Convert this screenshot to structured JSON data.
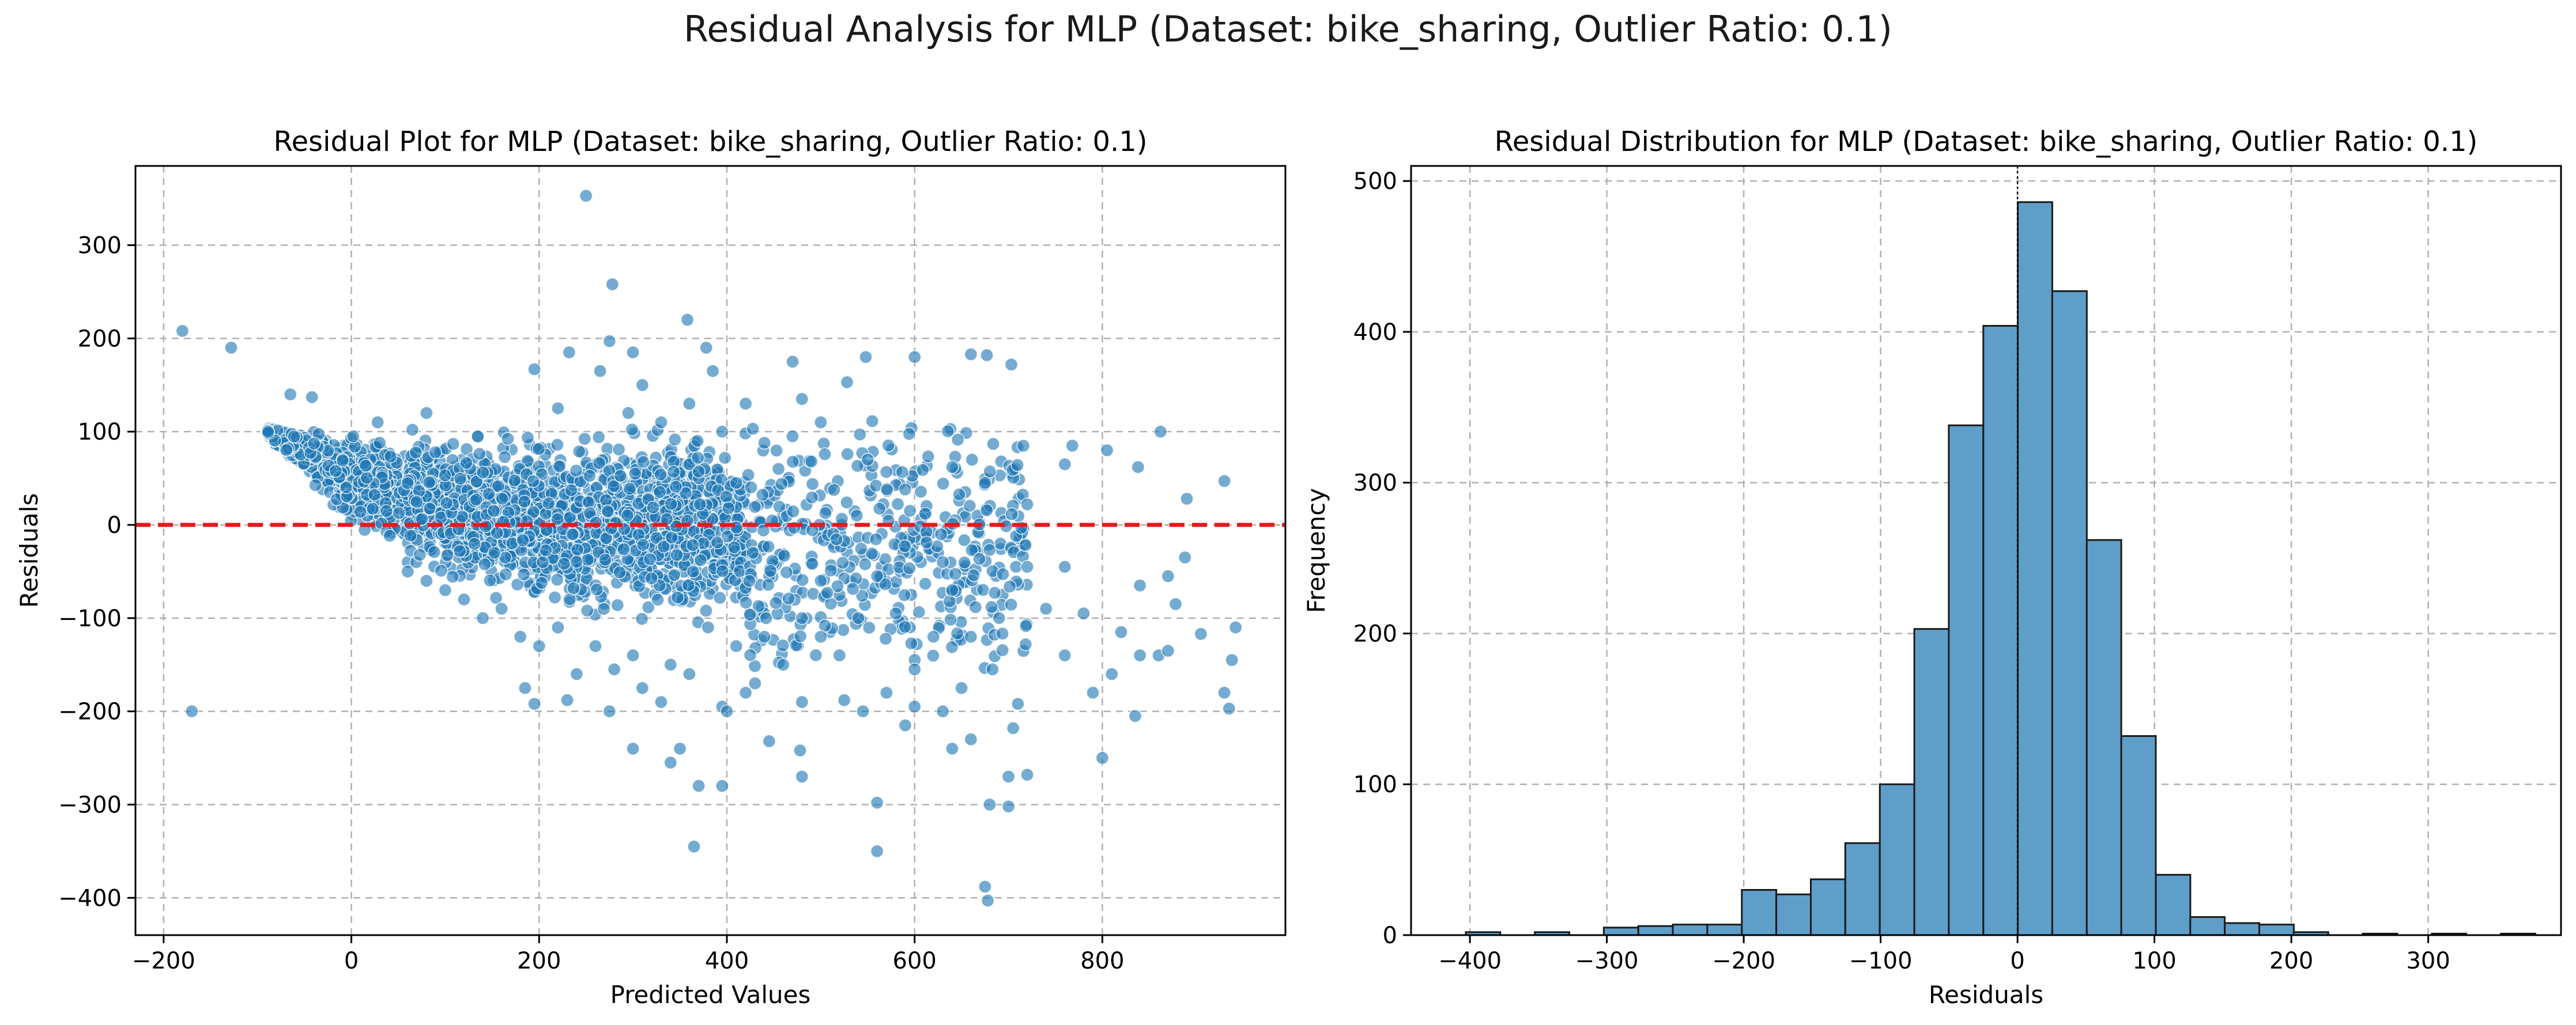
{
  "figure": {
    "suptitle": "Residual Analysis for MLP (Dataset: bike_sharing, Outlier Ratio: 0.1)"
  },
  "chart_data": [
    {
      "type": "scatter",
      "title": "Residual Plot for MLP (Dataset: bike_sharing, Outlier Ratio: 0.1)",
      "xlabel": "Predicted Values",
      "ylabel": "Residuals",
      "xlim": [
        -230,
        995
      ],
      "ylim": [
        -440,
        385
      ],
      "xticks": [
        -200,
        0,
        200,
        400,
        600,
        800
      ],
      "xtick_labels": [
        "−200",
        "0",
        "200",
        "400",
        "600",
        "800"
      ],
      "yticks": [
        -400,
        -300,
        -200,
        -100,
        0,
        100,
        200,
        300
      ],
      "ytick_labels": [
        "−400",
        "−300",
        "−200",
        "−100",
        "0",
        "100",
        "200",
        "300"
      ],
      "grid": true,
      "reference_line": {
        "y": 0,
        "color": "#e41a1c",
        "style": "dashed"
      },
      "marker_color": "#1f77b4",
      "points": [
        [
          -180,
          208
        ],
        [
          -128,
          190
        ],
        [
          -65,
          140
        ],
        [
          -42,
          137
        ],
        [
          2,
          95
        ],
        [
          28,
          110
        ],
        [
          65,
          102
        ],
        [
          80,
          120
        ],
        [
          195,
          167
        ],
        [
          232,
          185
        ],
        [
          250,
          353
        ],
        [
          278,
          258
        ],
        [
          275,
          197
        ],
        [
          300,
          185
        ],
        [
          358,
          220
        ],
        [
          378,
          190
        ],
        [
          385,
          165
        ],
        [
          470,
          175
        ],
        [
          548,
          180
        ],
        [
          600,
          180
        ],
        [
          660,
          183
        ],
        [
          677,
          182
        ],
        [
          703,
          172
        ],
        [
          528,
          153
        ],
        [
          768,
          85
        ],
        [
          805,
          80
        ],
        [
          862,
          100
        ],
        [
          930,
          47
        ],
        [
          890,
          28
        ],
        [
          838,
          62
        ],
        [
          760,
          65
        ],
        [
          640,
          62
        ],
        [
          675,
          45
        ],
        [
          720,
          22
        ],
        [
          590,
          38
        ],
        [
          550,
          70
        ],
        [
          595,
          15
        ],
        [
          490,
          68
        ],
        [
          455,
          60
        ],
        [
          500,
          110
        ],
        [
          440,
          88
        ],
        [
          410,
          45
        ],
        [
          395,
          100
        ],
        [
          420,
          130
        ],
        [
          480,
          135
        ],
        [
          470,
          95
        ],
        [
          360,
          130
        ],
        [
          330,
          110
        ],
        [
          310,
          150
        ],
        [
          295,
          120
        ],
        [
          265,
          165
        ],
        [
          220,
          125
        ],
        [
          -170,
          -200
        ],
        [
          185,
          -175
        ],
        [
          195,
          -192
        ],
        [
          230,
          -188
        ],
        [
          275,
          -200
        ],
        [
          300,
          -240
        ],
        [
          340,
          -255
        ],
        [
          350,
          -240
        ],
        [
          365,
          -345
        ],
        [
          370,
          -280
        ],
        [
          395,
          -280
        ],
        [
          395,
          -195
        ],
        [
          420,
          -180
        ],
        [
          445,
          -232
        ],
        [
          480,
          -270
        ],
        [
          478,
          -242
        ],
        [
          480,
          -190
        ],
        [
          525,
          -188
        ],
        [
          545,
          -200
        ],
        [
          560,
          -298
        ],
        [
          560,
          -350
        ],
        [
          590,
          -215
        ],
        [
          600,
          -195
        ],
        [
          630,
          -200
        ],
        [
          640,
          -240
        ],
        [
          650,
          -175
        ],
        [
          660,
          -230
        ],
        [
          675,
          -388
        ],
        [
          678,
          -403
        ],
        [
          680,
          -300
        ],
        [
          683,
          -155
        ],
        [
          700,
          -270
        ],
        [
          710,
          -192
        ],
        [
          720,
          -268
        ],
        [
          700,
          -302
        ],
        [
          705,
          -218
        ],
        [
          790,
          -180
        ],
        [
          800,
          -250
        ],
        [
          810,
          -160
        ],
        [
          835,
          -205
        ],
        [
          840,
          -140
        ],
        [
          860,
          -140
        ],
        [
          870,
          -135
        ],
        [
          878,
          -85
        ],
        [
          905,
          -117
        ],
        [
          930,
          -180
        ],
        [
          935,
          -197
        ],
        [
          938,
          -145
        ],
        [
          942,
          -110
        ],
        [
          888,
          -35
        ],
        [
          870,
          -55
        ],
        [
          840,
          -65
        ],
        [
          820,
          -115
        ],
        [
          780,
          -95
        ],
        [
          760,
          -140
        ],
        [
          740,
          -90
        ],
        [
          760,
          -45
        ],
        [
          720,
          -45
        ],
        [
          690,
          -100
        ],
        [
          660,
          -120
        ],
        [
          640,
          -70
        ],
        [
          630,
          -40
        ],
        [
          620,
          -120
        ],
        [
          600,
          -155
        ],
        [
          580,
          -95
        ],
        [
          570,
          -180
        ],
        [
          560,
          -55
        ],
        [
          540,
          -100
        ],
        [
          520,
          -140
        ],
        [
          500,
          -120
        ],
        [
          500,
          -60
        ],
        [
          480,
          -100
        ],
        [
          460,
          -150
        ],
        [
          440,
          -120
        ],
        [
          430,
          -170
        ],
        [
          410,
          -130
        ],
        [
          400,
          -200
        ],
        [
          380,
          -110
        ],
        [
          360,
          -160
        ],
        [
          340,
          -150
        ],
        [
          330,
          -190
        ],
        [
          300,
          -140
        ],
        [
          310,
          -175
        ],
        [
          280,
          -155
        ],
        [
          260,
          -130
        ],
        [
          240,
          -160
        ],
        [
          220,
          -110
        ],
        [
          200,
          -130
        ],
        [
          180,
          -120
        ],
        [
          160,
          -90
        ],
        [
          140,
          -100
        ],
        [
          120,
          -80
        ],
        [
          100,
          -70
        ],
        [
          80,
          -60
        ],
        [
          60,
          -50
        ]
      ],
      "dense_band": {
        "x_range": [
          -90,
          420
        ],
        "upper_line": [
          [
            -90,
            105
          ],
          [
            0,
            105
          ],
          [
            100,
            108
          ],
          [
            200,
            112
          ],
          [
            300,
            115
          ],
          [
            420,
            115
          ]
        ],
        "lower_line": [
          [
            -90,
            95
          ],
          [
            -40,
            40
          ],
          [
            0,
            -5
          ],
          [
            50,
            -40
          ],
          [
            100,
            -70
          ],
          [
            200,
            -105
          ],
          [
            300,
            -120
          ],
          [
            420,
            -125
          ]
        ],
        "count": 2600
      },
      "sparse_band": {
        "x_range": [
          420,
          720
        ],
        "y_range": [
          -170,
          120
        ],
        "count": 420
      }
    },
    {
      "type": "bar",
      "subtype": "histogram",
      "title": "Residual Distribution for MLP (Dataset: bike_sharing, Outlier Ratio: 0.1)",
      "xlabel": "Residuals",
      "ylabel": "Frequency",
      "xlim": [
        -443,
        397
      ],
      "ylim": [
        0,
        510
      ],
      "xticks": [
        -400,
        -300,
        -200,
        -100,
        0,
        100,
        200,
        300
      ],
      "xtick_labels": [
        "−400",
        "−300",
        "−200",
        "−100",
        "0",
        "100",
        "200",
        "300"
      ],
      "yticks": [
        0,
        100,
        200,
        300,
        400,
        500
      ],
      "ytick_labels": [
        "0",
        "100",
        "200",
        "300",
        "400",
        "500"
      ],
      "grid": true,
      "bar_color": "#5f9ec9",
      "edge_color": "#1a1a1a",
      "bin_start": -403,
      "bin_width": 25.2,
      "counts": [
        2,
        0,
        2,
        0,
        5,
        6,
        7,
        7,
        30,
        27,
        37,
        61,
        100,
        203,
        338,
        404,
        486,
        427,
        262,
        132,
        40,
        12,
        8,
        7,
        2,
        0,
        1,
        0,
        1,
        0,
        1
      ],
      "vertical_marker": {
        "x": 0,
        "style": "dotted"
      }
    }
  ]
}
